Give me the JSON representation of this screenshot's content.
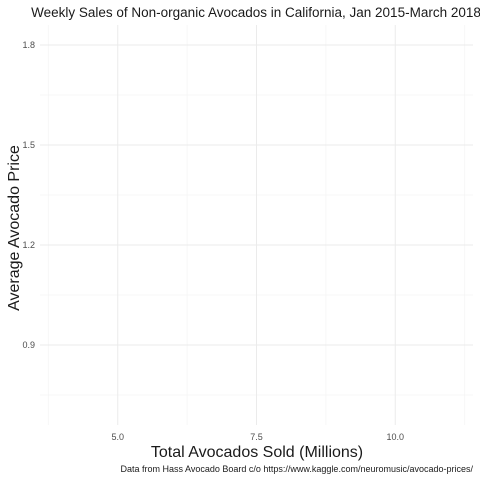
{
  "chart_data": {
    "type": "scatter",
    "title": "Weekly Sales of Non-organic Avocados in California, Jan 2015-March 2018",
    "xlabel": "Total Avocados Sold (Millions)",
    "ylabel": "Average Avocado Price",
    "caption": "Data from Hass Avocado Board c/o https://www.kaggle.com/neuromusic/avocado-prices/",
    "xlim": [
      3.6,
      11.4
    ],
    "ylim": [
      0.66,
      1.86
    ],
    "x_ticks": [
      5.0,
      7.5,
      10.0
    ],
    "x_tick_labels": [
      "5.0",
      "7.5",
      "10.0"
    ],
    "y_ticks": [
      0.9,
      1.2,
      1.5,
      1.8
    ],
    "y_tick_labels": [
      "0.9",
      "1.2",
      "1.5",
      "1.8"
    ],
    "x_minor_ticks": [
      3.75,
      6.25,
      8.75,
      11.25
    ],
    "y_minor_ticks": [
      0.75,
      1.05,
      1.35,
      1.65
    ],
    "grid": true,
    "legend": "none",
    "series": [
      {
        "x": [],
        "y": []
      }
    ],
    "colors": {
      "grid_major": "#ebebeb",
      "grid_minor": "#f5f5f5",
      "text": "#1a1a1a",
      "tick_text": "#4d4d4d"
    }
  }
}
